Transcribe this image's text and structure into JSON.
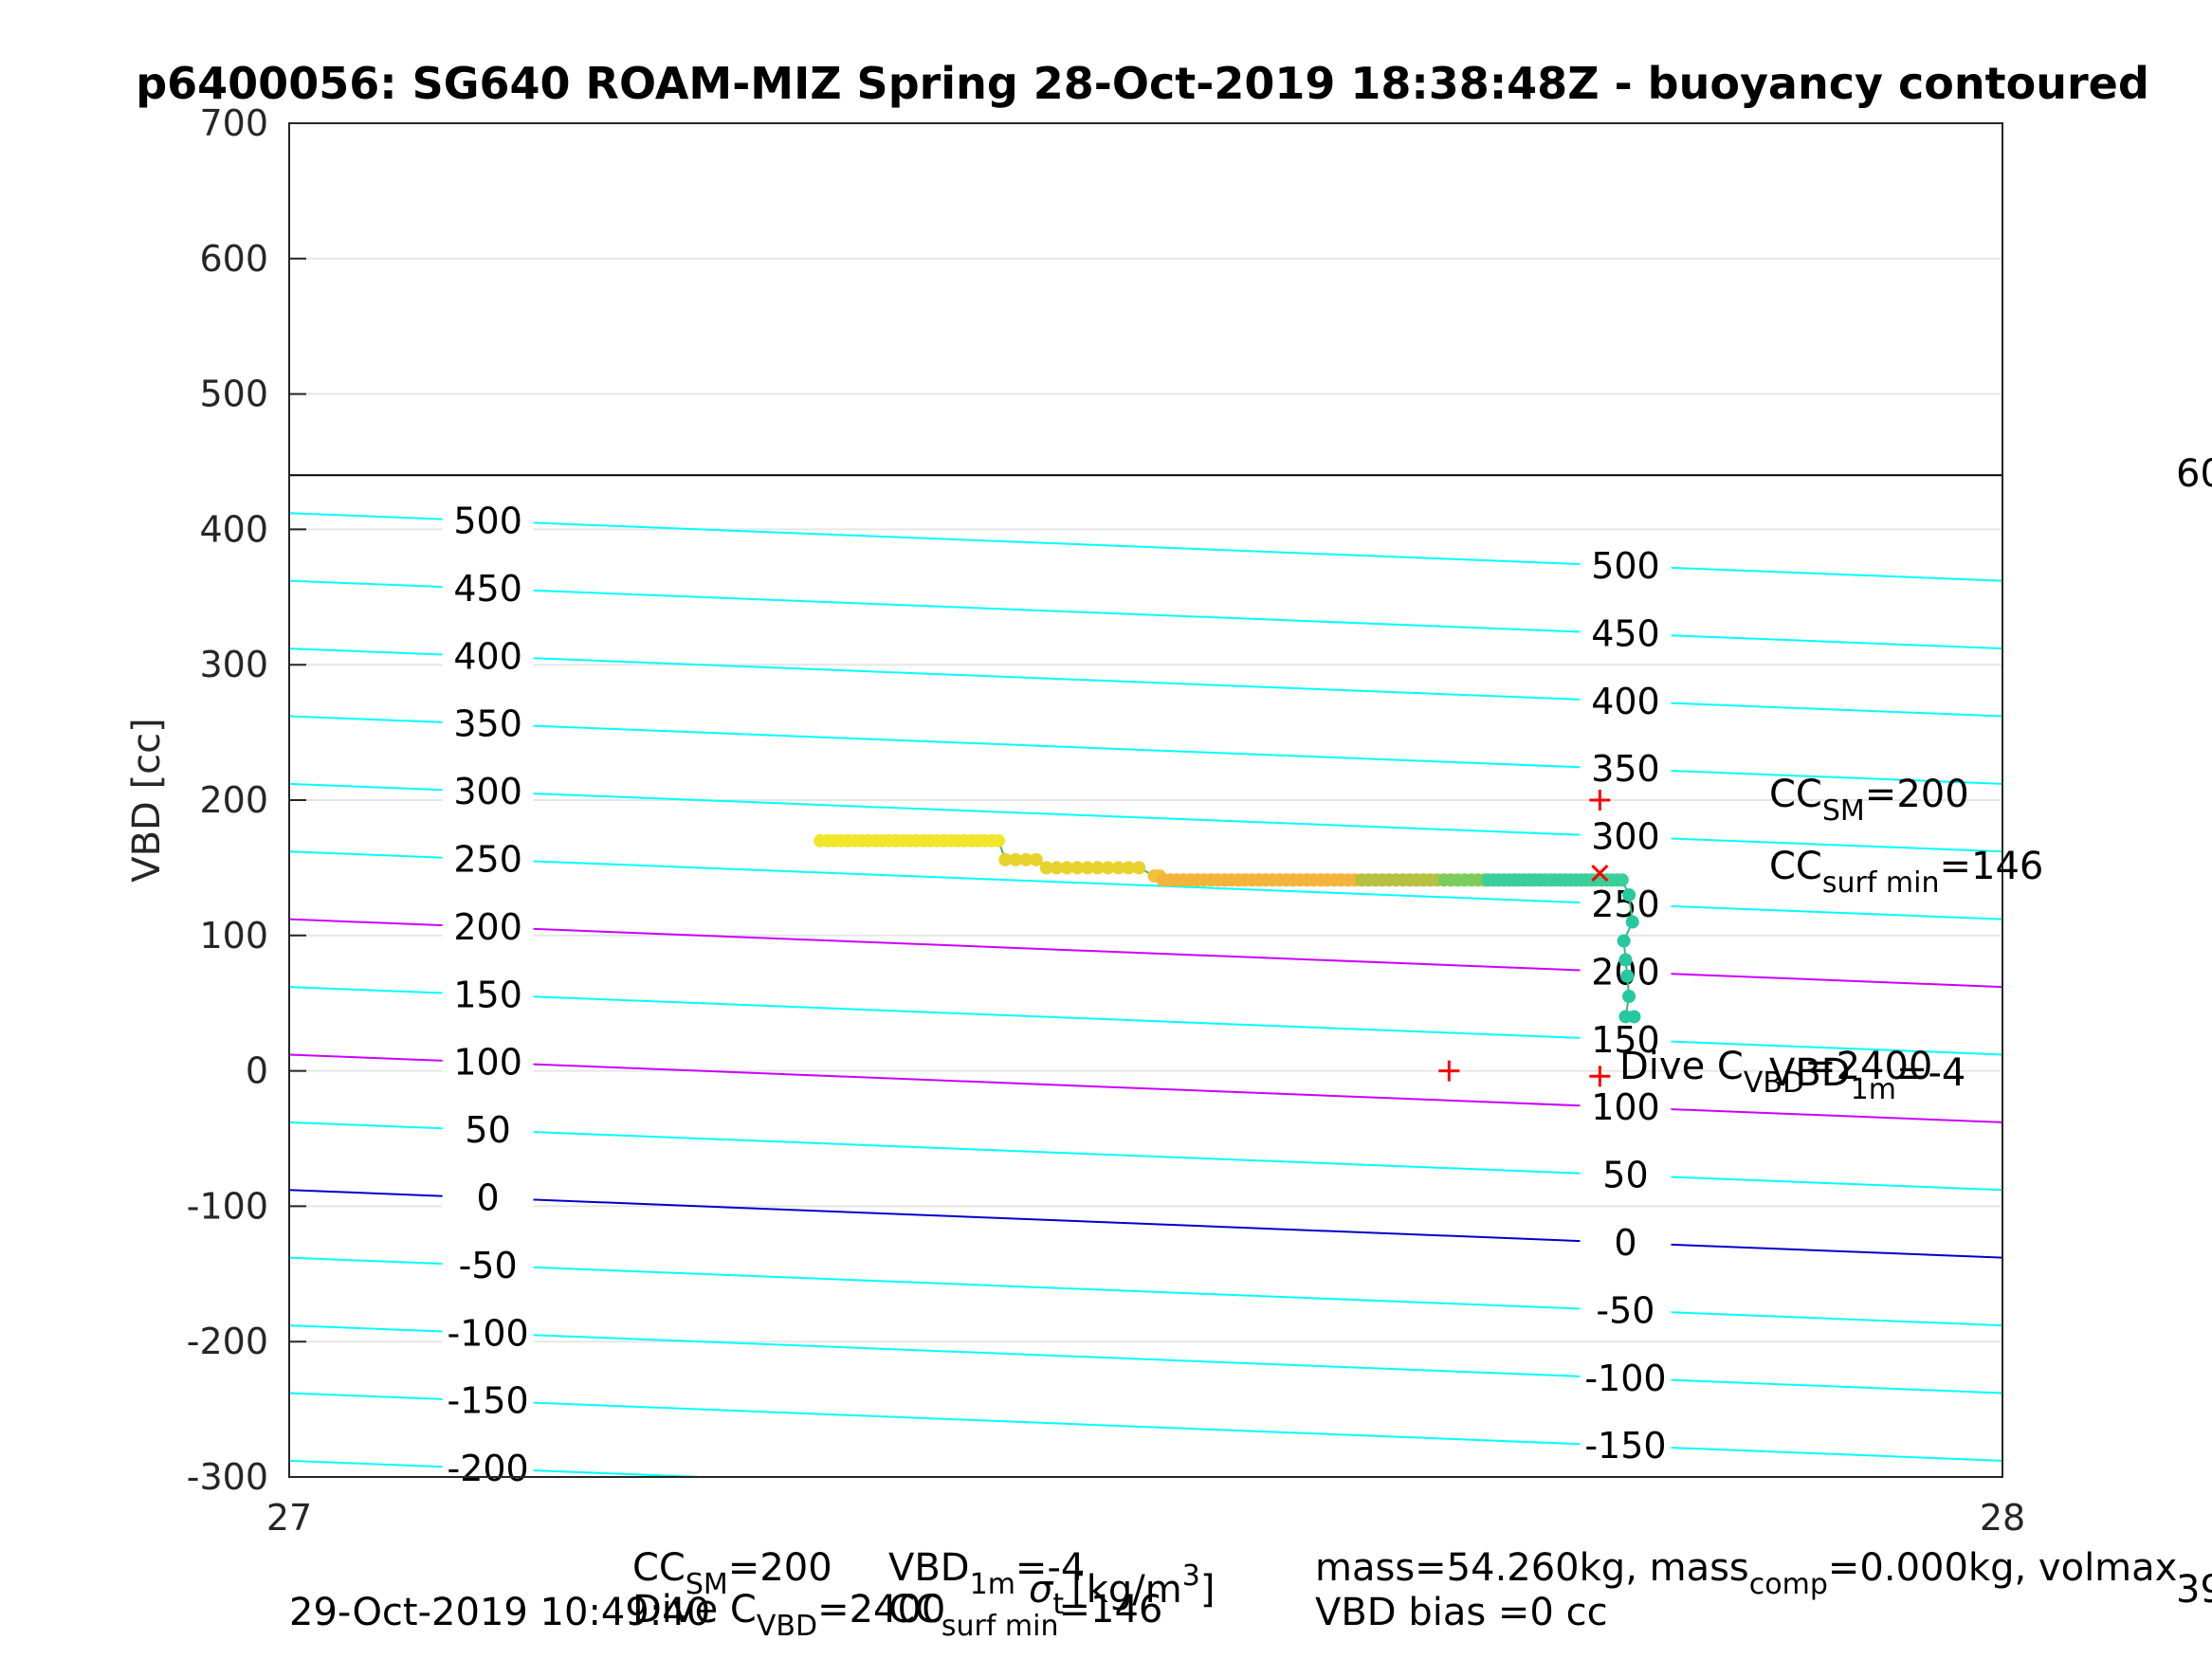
{
  "chart_data": {
    "type": "scatter",
    "title": "p6400056: SG640 ROAM-MIZ Spring 28-Oct-2019 18:38:48Z - buoyancy contoured",
    "xlabel": "",
    "ylabel": "VBD [cc]",
    "xlim": [
      27,
      28
    ],
    "ylim": [
      -300,
      700
    ],
    "x_ticks": [
      "27",
      "28"
    ],
    "y_ticks": [
      "700",
      "600",
      "500",
      "400",
      "300",
      "200",
      "100",
      "0",
      "-100",
      "-200",
      "-300"
    ],
    "grid": true,
    "contour_slope": -0.5,
    "contours": [
      {
        "level": 500,
        "y_at_27": 412,
        "label": "500",
        "color": "#00ffff"
      },
      {
        "level": 450,
        "y_at_27": 362,
        "label": "450",
        "color": "#00ffff"
      },
      {
        "level": 400,
        "y_at_27": 312,
        "label": "400",
        "color": "#00ffff"
      },
      {
        "level": 350,
        "y_at_27": 262,
        "label": "350",
        "color": "#00ffff"
      },
      {
        "level": 300,
        "y_at_27": 212,
        "label": "300",
        "color": "#00ffff"
      },
      {
        "level": 250,
        "y_at_27": 162,
        "label": "250",
        "color": "#00ffff"
      },
      {
        "level": 200,
        "y_at_27": 112,
        "label": "200",
        "color": "#cc00ff"
      },
      {
        "level": 150,
        "y_at_27": 62,
        "label": "150",
        "color": "#00ffff"
      },
      {
        "level": 100,
        "y_at_27": 12,
        "label": "100",
        "color": "#cc00ff"
      },
      {
        "level": 50,
        "y_at_27": -38,
        "label": "50",
        "color": "#00ffff"
      },
      {
        "level": 0,
        "y_at_27": -88,
        "label": "0",
        "color": "#0000cc"
      },
      {
        "level": -50,
        "y_at_27": -138,
        "label": "-50",
        "color": "#00ffff"
      },
      {
        "level": -100,
        "y_at_27": -188,
        "label": "-100",
        "color": "#00ffff"
      },
      {
        "level": -150,
        "y_at_27": -238,
        "label": "-150",
        "color": "#00ffff"
      },
      {
        "level": -200,
        "y_at_27": -288,
        "label": "-200",
        "color": "#00ffff"
      }
    ],
    "labels_right": [
      "500",
      "450",
      "400",
      "350",
      "300",
      "250",
      "200",
      "150",
      "100",
      "50",
      "0",
      "-50",
      "-100",
      "-150"
    ],
    "hline": {
      "y": 440,
      "color": "#000000"
    },
    "series": [
      {
        "points": [
          [
            27.31,
            170
          ],
          [
            27.32,
            170
          ],
          [
            27.33,
            170
          ],
          [
            27.34,
            170
          ],
          [
            27.35,
            170
          ],
          [
            27.36,
            170
          ],
          [
            27.37,
            170
          ],
          [
            27.38,
            170
          ],
          [
            27.39,
            170
          ],
          [
            27.4,
            170
          ],
          [
            27.41,
            170
          ],
          [
            27.42,
            170
          ],
          [
            27.43,
            170
          ],
          [
            27.44,
            170
          ],
          [
            27.45,
            170
          ],
          [
            27.46,
            170
          ],
          [
            27.47,
            170
          ],
          [
            27.48,
            170
          ],
          [
            27.49,
            170
          ],
          [
            27.5,
            170
          ],
          [
            27.51,
            170
          ],
          [
            27.52,
            170
          ],
          [
            27.53,
            170
          ],
          [
            27.54,
            170
          ],
          [
            27.55,
            170
          ],
          [
            27.56,
            170
          ],
          [
            27.57,
            170
          ],
          [
            27.58,
            170
          ],
          [
            27.59,
            170
          ],
          [
            27.6,
            170
          ],
          [
            27.61,
            170
          ],
          [
            27.62,
            170
          ],
          [
            27.63,
            170
          ],
          [
            27.64,
            170
          ],
          [
            27.65,
            170
          ],
          [
            27.66,
            170
          ],
          [
            27.67,
            170
          ],
          [
            27.68,
            170
          ],
          [
            27.69,
            170
          ],
          [
            27.7,
            170
          ],
          [
            27.71,
            170
          ],
          [
            27.72,
            170
          ],
          [
            27.73,
            170
          ],
          [
            27.74,
            170
          ],
          [
            27.75,
            170
          ],
          [
            27.76,
            170
          ],
          [
            27.77,
            170
          ],
          [
            27.78,
            170
          ]
        ],
        "color": "#ffff00"
      }
    ],
    "markers": [
      {
        "x": 27.765,
        "y": 200,
        "symbol": "+",
        "color": "#ff0000"
      },
      {
        "x": 27.765,
        "y": 146,
        "symbol": "x",
        "color": "#ff0000"
      },
      {
        "x": 27.677,
        "y": 0,
        "symbol": "+",
        "color": "#ff0000"
      },
      {
        "x": 27.765,
        "y": -4,
        "symbol": "+",
        "color": "#ff0000"
      }
    ],
    "annotations": {
      "cc_sm": {
        "a": "CC",
        "sub": "SM",
        "b": "=200"
      },
      "cc_surf_min": {
        "a": "CC",
        "sub": "surf min",
        "b": "=146"
      },
      "dive_c_vbd": {
        "a": "Dive C",
        "sub": "VBD",
        "b": "=2400"
      },
      "vbd_1m": {
        "a": "VBD",
        "sub": "1m",
        "b": "=-4"
      },
      "colorbar_top": "60",
      "colorbar_bottom": "39"
    }
  },
  "footer": {
    "timestamp": "29-Oct-2019 10:49:40",
    "line1_cc": "CC",
    "line1_cc_sub": "SM",
    "line1_cc_val": "=200",
    "line1_vbd": "VBD",
    "line1_vbd_sub": "1m",
    "line1_vbd_val": "=-4",
    "line2_dive": "Dive C",
    "line2_dive_sub": "VBD",
    "line2_dive_val": "=2400",
    "line2_cc": "CC",
    "line2_cc_sub": "surf min",
    "line2_cc_val": "=146",
    "sigma_label": "σ",
    "sigma_sub": "t",
    "sigma_units": "[kg/m",
    "sigma_sup": "3",
    "sigma_close": "]",
    "mass": "mass=54.260kg, mass",
    "mass_sub": "comp",
    "mass_rest": "=0.000kg, volmax",
    "vbd_bias": "VBD bias =0 cc"
  }
}
